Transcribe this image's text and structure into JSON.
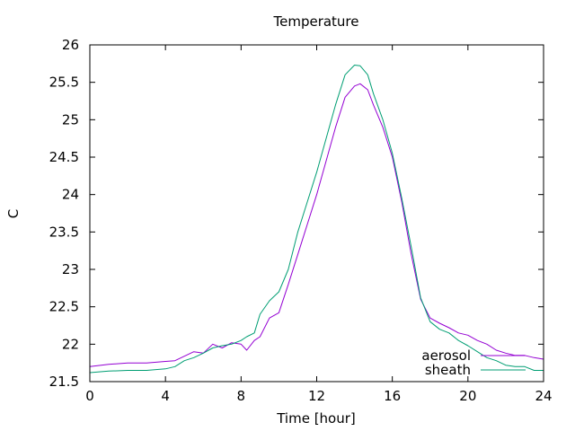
{
  "chart_data": {
    "type": "line",
    "title": "Temperature",
    "xlabel": "Time [hour]",
    "ylabel": "C",
    "xlim": [
      0,
      24
    ],
    "ylim": [
      21.5,
      26
    ],
    "xticks": [
      0,
      4,
      8,
      12,
      16,
      20,
      24
    ],
    "xtick_labels": [
      "0",
      "4",
      "8",
      "12",
      "16",
      "20",
      "24"
    ],
    "yticks": [
      21.5,
      22,
      22.5,
      23,
      23.5,
      24,
      24.5,
      25,
      25.5,
      26
    ],
    "ytick_labels": [
      "21.5",
      "22",
      "22.5",
      "23",
      "23.5",
      "24",
      "24.5",
      "25",
      "25.5",
      "26"
    ],
    "grid": false,
    "legend_position": "bottom-right",
    "series": [
      {
        "name": "aerosol",
        "color": "#9400d3",
        "x": [
          0,
          1,
          2,
          3,
          4,
          4.5,
          5,
          5.5,
          6,
          6.5,
          7,
          7.5,
          8,
          8.3,
          8.7,
          9,
          9.5,
          10,
          10.5,
          11,
          11.5,
          12,
          12.5,
          13,
          13.5,
          14,
          14.3,
          14.7,
          15,
          15.5,
          16,
          16.5,
          17,
          17.5,
          18,
          18.5,
          19,
          19.5,
          20,
          20.5,
          21,
          21.5,
          22,
          22.5,
          23,
          23.5,
          24
        ],
        "y": [
          21.7,
          21.73,
          21.75,
          21.75,
          21.77,
          21.78,
          21.84,
          21.9,
          21.88,
          22.0,
          21.95,
          22.02,
          22.0,
          21.92,
          22.05,
          22.1,
          22.35,
          22.42,
          22.8,
          23.2,
          23.6,
          24.0,
          24.45,
          24.9,
          25.3,
          25.45,
          25.48,
          25.4,
          25.2,
          24.9,
          24.5,
          23.9,
          23.2,
          22.6,
          22.35,
          22.28,
          22.22,
          22.15,
          22.12,
          22.05,
          22.0,
          21.92,
          21.88,
          21.85,
          21.85,
          21.82,
          21.8
        ]
      },
      {
        "name": "sheath",
        "color": "#009e73",
        "x": [
          0,
          1,
          2,
          3,
          4,
          4.5,
          5,
          5.5,
          6,
          6.5,
          7,
          7.5,
          8,
          8.3,
          8.7,
          9,
          9.5,
          10,
          10.5,
          11,
          11.5,
          12,
          12.5,
          13,
          13.5,
          14,
          14.3,
          14.7,
          15,
          15.5,
          16,
          16.5,
          17,
          17.5,
          18,
          18.5,
          19,
          19.5,
          20,
          20.5,
          21,
          21.5,
          22,
          22.5,
          23,
          23.5,
          24
        ],
        "y": [
          21.62,
          21.64,
          21.65,
          21.65,
          21.67,
          21.7,
          21.78,
          21.82,
          21.88,
          21.95,
          21.98,
          22.0,
          22.05,
          22.1,
          22.15,
          22.4,
          22.58,
          22.7,
          23.0,
          23.5,
          23.9,
          24.3,
          24.75,
          25.2,
          25.6,
          25.73,
          25.72,
          25.6,
          25.35,
          25.0,
          24.55,
          23.95,
          23.3,
          22.62,
          22.3,
          22.2,
          22.15,
          22.05,
          21.98,
          21.9,
          21.82,
          21.78,
          21.72,
          21.7,
          21.7,
          21.65,
          21.65
        ]
      }
    ]
  }
}
